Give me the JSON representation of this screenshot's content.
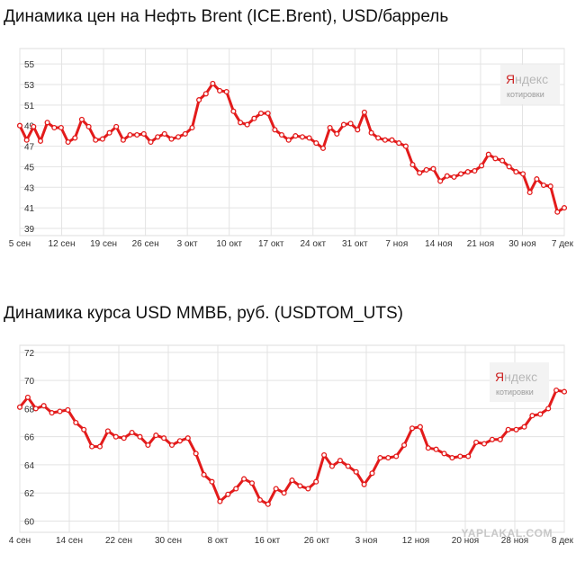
{
  "charts_meta": {
    "watermark": "YAPLAKAL.COM",
    "logo": {
      "brand_first": "Я",
      "brand_rest": "ндекс",
      "caption": "котировки"
    }
  },
  "chart_data": [
    {
      "type": "line",
      "title": "Динамика цен на Нефть Brent (ICE.Brent), USD/баррель",
      "xlabel": "",
      "ylabel": "",
      "x_ticks": [
        "5 сен",
        "12 сен",
        "19 сен",
        "26 сен",
        "3 окт",
        "10 окт",
        "17 окт",
        "24 окт",
        "31 окт",
        "7 ноя",
        "14 ноя",
        "21 ноя",
        "30 ноя",
        "7 дек"
      ],
      "y_ticks": [
        39,
        41,
        43,
        45,
        47,
        49,
        51,
        53,
        55
      ],
      "ylim": [
        38.3,
        56.5
      ],
      "series": [
        {
          "color": "#e31b1b",
          "values": [
            49.0,
            47.6,
            48.9,
            47.5,
            49.3,
            48.8,
            48.8,
            47.4,
            47.8,
            49.6,
            48.9,
            47.6,
            47.7,
            48.3,
            48.9,
            47.6,
            48.1,
            48.1,
            48.2,
            47.4,
            47.9,
            48.2,
            47.7,
            47.9,
            48.2,
            48.8,
            51.5,
            52.1,
            53.1,
            52.4,
            52.3,
            50.4,
            49.3,
            49.1,
            49.7,
            50.2,
            50.2,
            48.6,
            48.1,
            47.6,
            48.0,
            47.9,
            47.8,
            47.3,
            46.8,
            48.8,
            48.2,
            49.1,
            49.2,
            48.6,
            50.3,
            48.3,
            47.8,
            47.6,
            47.6,
            47.3,
            47.0,
            45.2,
            44.4,
            44.7,
            44.8,
            43.6,
            44.1,
            44.0,
            44.3,
            44.5,
            44.6,
            45.1,
            46.2,
            45.8,
            45.6,
            45.0,
            44.5,
            44.3,
            42.5,
            43.8,
            43.2,
            43.1,
            40.6,
            41.0
          ]
        }
      ],
      "grid": true,
      "legend": "none"
    },
    {
      "type": "line",
      "title": "Динамика курса USD ММВБ, руб. (USDTOM_UTS)",
      "xlabel": "",
      "ylabel": "",
      "x_ticks": [
        "4 сен",
        "14 сен",
        "22 сен",
        "30 сен",
        "8 окт",
        "16 окт",
        "26 окт",
        "3 ноя",
        "12 ноя",
        "20 ноя",
        "28 ноя",
        "8 дек"
      ],
      "y_ticks": [
        60,
        62,
        64,
        66,
        68,
        70,
        72
      ],
      "ylim": [
        59.2,
        72.5
      ],
      "series": [
        {
          "color": "#e31b1b",
          "values": [
            68.1,
            68.8,
            68.0,
            68.2,
            67.7,
            67.8,
            67.9,
            67.0,
            66.5,
            65.3,
            65.3,
            66.4,
            66.0,
            65.9,
            66.3,
            66.0,
            65.4,
            66.1,
            65.9,
            65.4,
            65.7,
            65.9,
            64.8,
            63.3,
            62.8,
            61.4,
            61.9,
            62.3,
            63.0,
            62.7,
            61.5,
            61.2,
            62.3,
            62.0,
            62.9,
            62.5,
            62.3,
            62.8,
            64.7,
            63.9,
            64.3,
            63.9,
            63.5,
            62.6,
            63.4,
            64.5,
            64.5,
            64.6,
            65.4,
            66.6,
            66.7,
            65.2,
            65.1,
            64.8,
            64.5,
            64.6,
            64.6,
            65.6,
            65.5,
            65.8,
            65.8,
            66.5,
            66.5,
            66.7,
            67.5,
            67.6,
            68.0,
            69.3,
            69.2
          ]
        }
      ],
      "grid": true,
      "legend": "none"
    }
  ]
}
